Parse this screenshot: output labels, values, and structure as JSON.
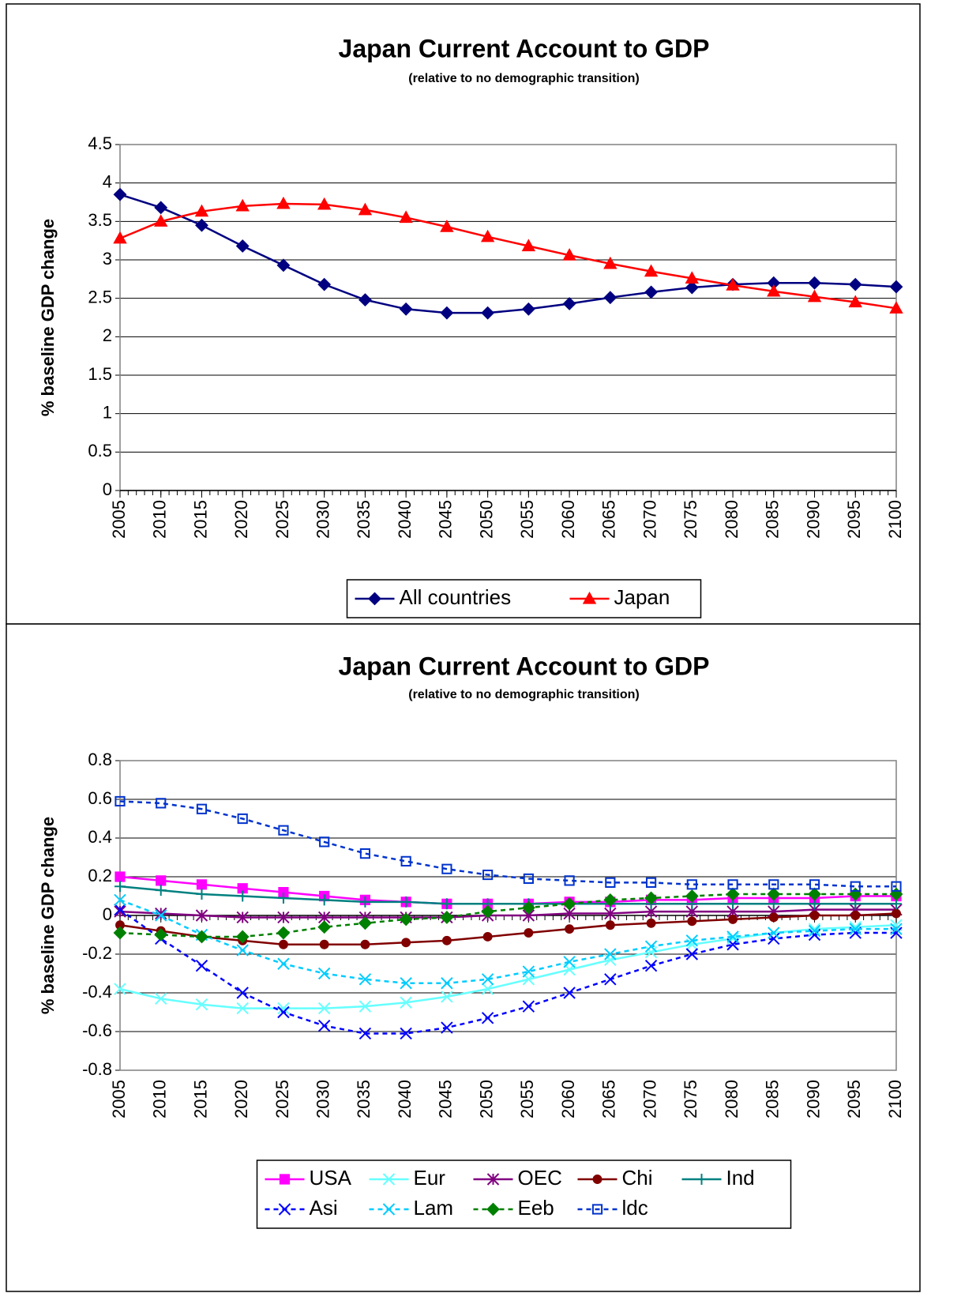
{
  "chart_data": [
    {
      "type": "line",
      "title": "Japan Current Account to GDP",
      "subtitle": "(relative to no demographic transition)",
      "y_label": "% baseline GDP change",
      "x": [
        2005,
        2010,
        2015,
        2020,
        2025,
        2030,
        2035,
        2040,
        2045,
        2050,
        2055,
        2060,
        2065,
        2070,
        2075,
        2080,
        2085,
        2090,
        2095,
        2100
      ],
      "xlim": [
        2005,
        2100
      ],
      "xticks": [
        2005,
        2010,
        2015,
        2020,
        2025,
        2030,
        2035,
        2040,
        2045,
        2050,
        2055,
        2060,
        2065,
        2070,
        2075,
        2080,
        2085,
        2090,
        2095,
        2100
      ],
      "ylim": [
        0,
        4.5
      ],
      "yticks": [
        0,
        0.5,
        1,
        1.5,
        2,
        2.5,
        3,
        3.5,
        4,
        4.5
      ],
      "grid": true,
      "legend": "bottom",
      "series": [
        {
          "name": "All countries",
          "color": "#000080",
          "marker": "diamond",
          "dash": false,
          "values": [
            3.85,
            3.68,
            3.45,
            3.18,
            2.93,
            2.68,
            2.48,
            2.36,
            2.31,
            2.31,
            2.36,
            2.43,
            2.51,
            2.58,
            2.64,
            2.68,
            2.7,
            2.7,
            2.68,
            2.65
          ]
        },
        {
          "name": "Japan",
          "color": "#ff0000",
          "marker": "triangle",
          "dash": false,
          "values": [
            3.28,
            3.5,
            3.63,
            3.7,
            3.73,
            3.72,
            3.65,
            3.55,
            3.43,
            3.3,
            3.18,
            3.06,
            2.95,
            2.85,
            2.76,
            2.67,
            2.59,
            2.52,
            2.45,
            2.37
          ]
        }
      ]
    },
    {
      "type": "line",
      "title": "Japan Current Account to GDP",
      "subtitle": "(relative to no demographic transition)",
      "y_label": "% baseline GDP change",
      "x": [
        2005,
        2010,
        2015,
        2020,
        2025,
        2030,
        2035,
        2040,
        2045,
        2050,
        2055,
        2060,
        2065,
        2070,
        2075,
        2080,
        2085,
        2090,
        2095,
        2100
      ],
      "xlim": [
        2005,
        2100
      ],
      "xticks": [
        2005,
        2010,
        2015,
        2020,
        2025,
        2030,
        2035,
        2040,
        2045,
        2050,
        2055,
        2060,
        2065,
        2070,
        2075,
        2080,
        2085,
        2090,
        2095,
        2100
      ],
      "ylim": [
        -0.8,
        0.8
      ],
      "yticks": [
        -0.8,
        -0.6,
        -0.4,
        -0.2,
        0,
        0.2,
        0.4,
        0.6,
        0.8
      ],
      "grid": true,
      "legend": "bottom",
      "series": [
        {
          "name": "USA",
          "color": "#ff00ff",
          "marker": "square",
          "dash": false,
          "values": [
            0.2,
            0.18,
            0.16,
            0.14,
            0.12,
            0.1,
            0.08,
            0.07,
            0.06,
            0.06,
            0.06,
            0.07,
            0.07,
            0.08,
            0.08,
            0.09,
            0.09,
            0.09,
            0.1,
            0.1
          ]
        },
        {
          "name": "Eur",
          "color": "#66ffff",
          "marker": "x",
          "dash": false,
          "values": [
            -0.38,
            -0.43,
            -0.46,
            -0.48,
            -0.48,
            -0.48,
            -0.47,
            -0.45,
            -0.42,
            -0.38,
            -0.33,
            -0.28,
            -0.23,
            -0.19,
            -0.15,
            -0.12,
            -0.09,
            -0.07,
            -0.06,
            -0.05
          ]
        },
        {
          "name": "OEC",
          "color": "#800080",
          "marker": "star",
          "dash": false,
          "values": [
            0.02,
            0.01,
            0.0,
            -0.01,
            -0.01,
            -0.01,
            -0.01,
            -0.01,
            -0.01,
            0.0,
            0.0,
            0.01,
            0.01,
            0.02,
            0.02,
            0.02,
            0.02,
            0.03,
            0.03,
            0.03
          ]
        },
        {
          "name": "Chi",
          "color": "#800000",
          "marker": "circle",
          "dash": false,
          "values": [
            -0.05,
            -0.08,
            -0.11,
            -0.13,
            -0.15,
            -0.15,
            -0.15,
            -0.14,
            -0.13,
            -0.11,
            -0.09,
            -0.07,
            -0.05,
            -0.04,
            -0.03,
            -0.02,
            -0.01,
            0.0,
            0.0,
            0.01
          ]
        },
        {
          "name": "Ind",
          "color": "#008080",
          "marker": "plus",
          "dash": false,
          "values": [
            0.15,
            0.13,
            0.11,
            0.1,
            0.09,
            0.08,
            0.07,
            0.07,
            0.06,
            0.06,
            0.06,
            0.06,
            0.06,
            0.06,
            0.06,
            0.06,
            0.06,
            0.06,
            0.06,
            0.06
          ]
        },
        {
          "name": "Asi",
          "color": "#0000ff",
          "marker": "x",
          "dash": true,
          "values": [
            0.03,
            -0.12,
            -0.26,
            -0.4,
            -0.5,
            -0.57,
            -0.61,
            -0.61,
            -0.58,
            -0.53,
            -0.47,
            -0.4,
            -0.33,
            -0.26,
            -0.2,
            -0.15,
            -0.12,
            -0.1,
            -0.09,
            -0.09
          ]
        },
        {
          "name": "Lam",
          "color": "#00ccff",
          "marker": "x",
          "dash": true,
          "values": [
            0.08,
            0.0,
            -0.1,
            -0.18,
            -0.25,
            -0.3,
            -0.33,
            -0.35,
            -0.35,
            -0.33,
            -0.29,
            -0.24,
            -0.2,
            -0.16,
            -0.13,
            -0.11,
            -0.09,
            -0.08,
            -0.07,
            -0.07
          ]
        },
        {
          "name": "Eeb",
          "color": "#008000",
          "marker": "diamond",
          "dash": true,
          "values": [
            -0.09,
            -0.1,
            -0.11,
            -0.11,
            -0.09,
            -0.06,
            -0.04,
            -0.02,
            -0.01,
            0.02,
            0.04,
            0.06,
            0.08,
            0.09,
            0.1,
            0.11,
            0.11,
            0.11,
            0.11,
            0.11
          ]
        },
        {
          "name": "ldc",
          "color": "#0033cc",
          "marker": "opensquare",
          "dash": true,
          "values": [
            0.59,
            0.58,
            0.55,
            0.5,
            0.44,
            0.38,
            0.32,
            0.28,
            0.24,
            0.21,
            0.19,
            0.18,
            0.17,
            0.17,
            0.16,
            0.16,
            0.16,
            0.16,
            0.15,
            0.15
          ]
        }
      ]
    }
  ]
}
